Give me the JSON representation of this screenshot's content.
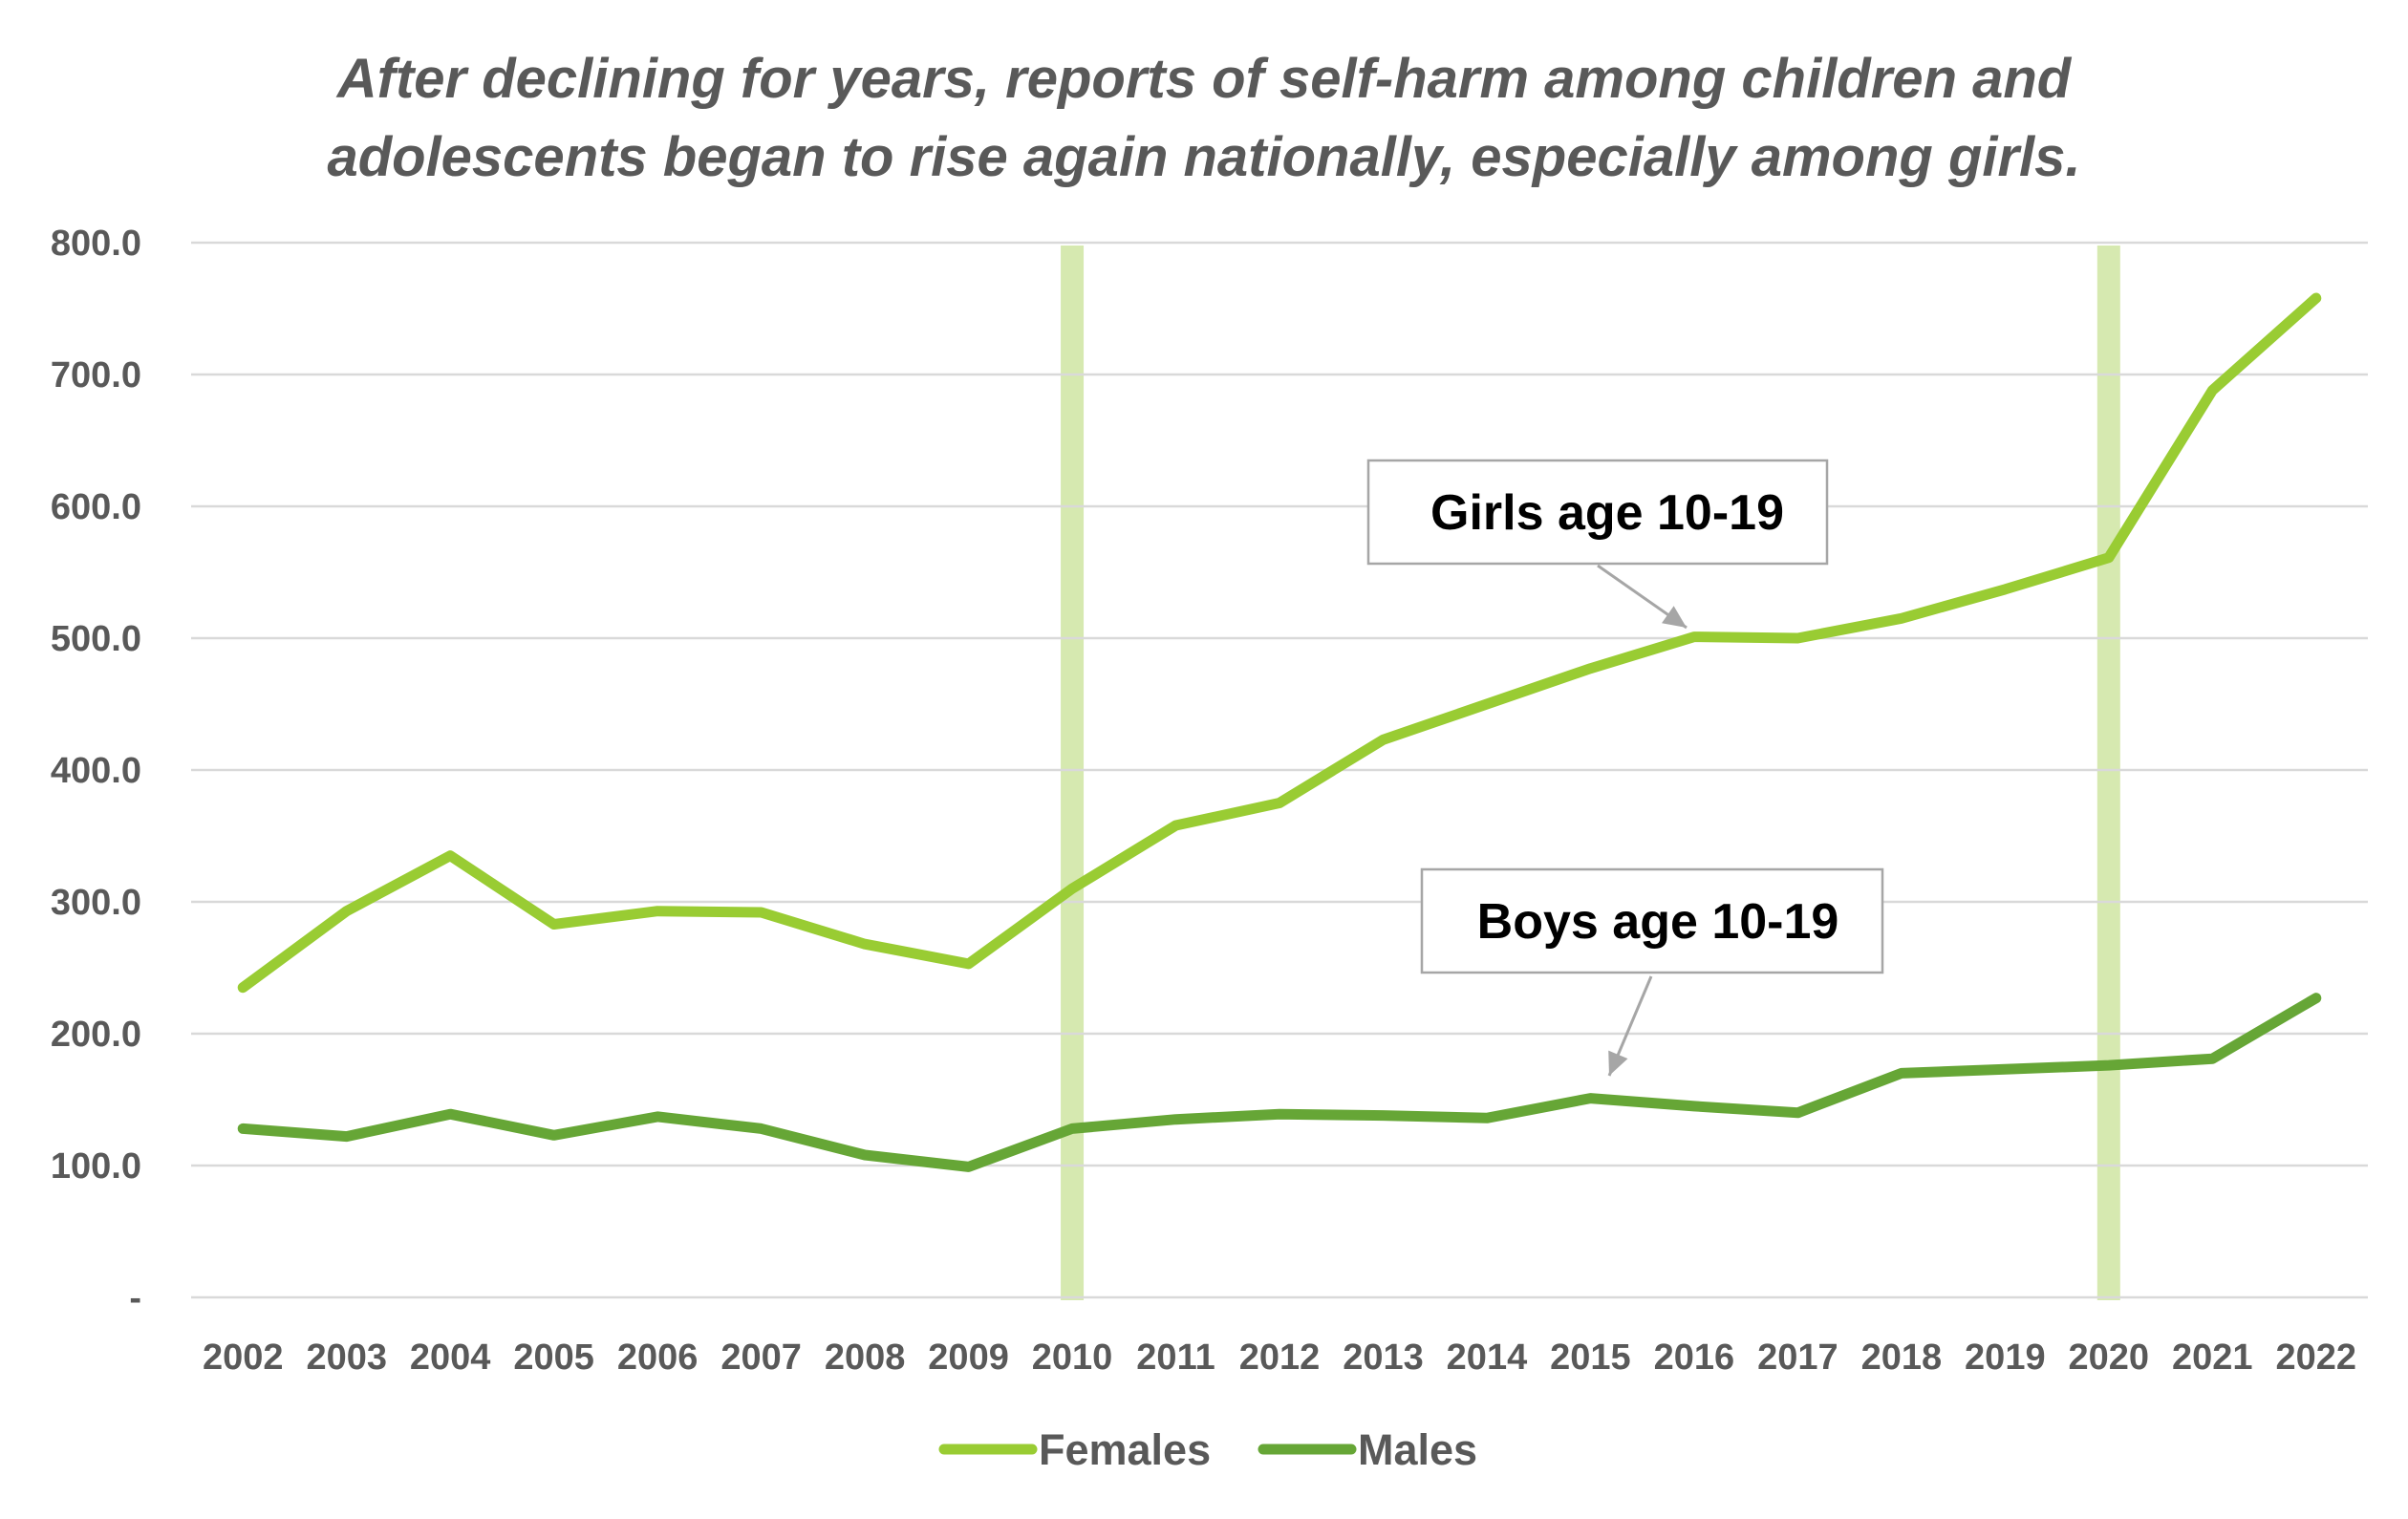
{
  "chart_data": {
    "type": "line",
    "title_lines": [
      "After declining for years, reports of self-harm among children and",
      "adolescents began to rise again nationally, especially among girls."
    ],
    "xlabel": "",
    "ylabel": "",
    "ylim": [
      0,
      800
    ],
    "y_ticks": [
      "-",
      "100.0",
      "200.0",
      "300.0",
      "400.0",
      "500.0",
      "600.0",
      "700.0",
      "800.0"
    ],
    "y_tick_values": [
      0,
      100,
      200,
      300,
      400,
      500,
      600,
      700,
      800
    ],
    "categories": [
      "2002",
      "2003",
      "2004",
      "2005",
      "2006",
      "2007",
      "2008",
      "2009",
      "2010",
      "2011",
      "2012",
      "2013",
      "2014",
      "2015",
      "2016",
      "2017",
      "2018",
      "2019",
      "2020",
      "2021",
      "2022"
    ],
    "grid": true,
    "legend_position": "bottom",
    "series": [
      {
        "name": "Females",
        "color": "#99cc33",
        "values": [
          235,
          293,
          335,
          283,
          293,
          292,
          268,
          253,
          310,
          358,
          375,
          423,
          450,
          477,
          501,
          500,
          515,
          537,
          561,
          688,
          758
        ]
      },
      {
        "name": "Males",
        "color": "#66a636",
        "values": [
          128,
          122,
          139,
          123,
          137,
          128,
          108,
          99,
          128,
          135,
          139,
          138,
          136,
          151,
          145,
          140,
          170,
          173,
          176,
          181,
          227
        ]
      }
    ],
    "highlight_years": [
      "2010",
      "2020"
    ],
    "highlight_color": "#d6e9b0",
    "annotations": [
      {
        "text": "Girls age 10-19",
        "points_to_year": "2016",
        "series": "Females"
      },
      {
        "text": "Boys age 10-19",
        "points_to_year": "2015",
        "series": "Males"
      }
    ]
  }
}
